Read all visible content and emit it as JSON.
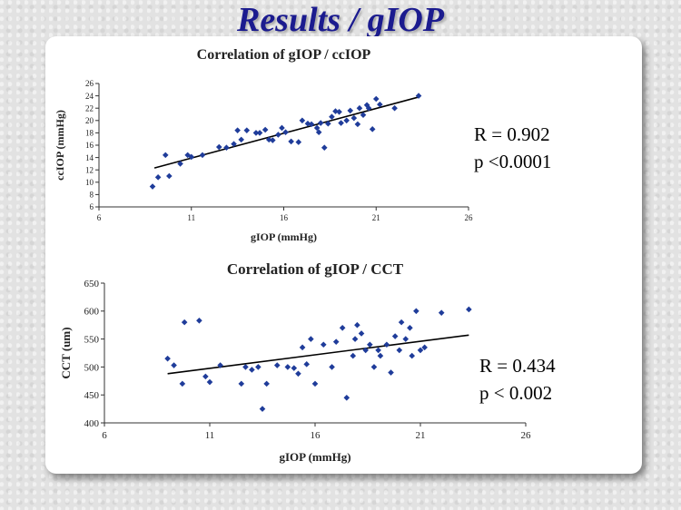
{
  "slide": {
    "title": "Results / gIOP"
  },
  "chart_data": [
    {
      "type": "scatter",
      "title": "Correlation of  gIOP  /  ccIOP",
      "xlabel": "gIOP (mmHg)",
      "ylabel": "ccIOP (mmHg)",
      "xlim": [
        6,
        26
      ],
      "ylim": [
        6,
        26
      ],
      "xticks": [
        "6",
        "11",
        "16",
        "21",
        "26"
      ],
      "yticks": [
        "6",
        "8",
        "10",
        "12",
        "14",
        "16",
        "18",
        "20",
        "22",
        "24",
        "26"
      ],
      "grid": false,
      "trendline": {
        "x": [
          9,
          23.3
        ],
        "y": [
          12.3,
          23.8
        ]
      },
      "points": {
        "x": [
          8.9,
          9.2,
          9.6,
          9.8,
          10.4,
          10.8,
          11.0,
          11.6,
          12.5,
          12.9,
          13.3,
          13.5,
          13.7,
          14.0,
          14.5,
          14.7,
          15.0,
          15.2,
          15.4,
          15.7,
          15.9,
          16.1,
          16.4,
          16.8,
          17.0,
          17.3,
          17.5,
          17.8,
          17.9,
          18.0,
          18.2,
          18.4,
          18.6,
          18.8,
          19.0,
          19.1,
          19.4,
          19.6,
          19.8,
          20.0,
          20.1,
          20.3,
          20.5,
          20.6,
          20.8,
          21.0,
          21.2,
          22.0,
          23.3
        ],
        "y": [
          9.3,
          10.8,
          14.4,
          11.0,
          13.0,
          14.4,
          14.1,
          14.4,
          15.7,
          15.6,
          16.2,
          18.4,
          16.9,
          18.4,
          18.0,
          18.0,
          18.5,
          16.9,
          16.8,
          17.7,
          18.8,
          18.1,
          16.6,
          16.5,
          20.0,
          19.5,
          19.4,
          18.8,
          18.1,
          19.6,
          15.6,
          19.5,
          20.6,
          21.5,
          21.4,
          19.6,
          20.0,
          21.6,
          20.4,
          19.4,
          22.0,
          20.9,
          22.5,
          22.0,
          18.6,
          23.5,
          22.6,
          22.0,
          24.0
        ]
      }
    },
    {
      "type": "scatter",
      "title": "Correlation of  gIOP  /  CCT",
      "xlabel": "gIOP (mmHg)",
      "ylabel": "CCT (um)",
      "xlim": [
        6,
        26
      ],
      "ylim": [
        400,
        650
      ],
      "xticks": [
        "6",
        "11",
        "16",
        "21",
        "26"
      ],
      "yticks": [
        "400",
        "450",
        "500",
        "550",
        "600",
        "650"
      ],
      "grid": false,
      "trendline": {
        "x": [
          9,
          23.3
        ],
        "y": [
          488,
          557
        ]
      },
      "points": {
        "x": [
          9.0,
          9.3,
          9.7,
          9.8,
          10.5,
          10.8,
          11.0,
          11.5,
          12.5,
          12.7,
          13.0,
          13.3,
          13.5,
          13.7,
          14.2,
          14.7,
          15.0,
          15.2,
          15.4,
          15.6,
          15.8,
          16.0,
          16.4,
          16.8,
          17.0,
          17.3,
          17.5,
          17.8,
          17.9,
          18.0,
          18.2,
          18.4,
          18.6,
          18.8,
          19.0,
          19.1,
          19.4,
          19.6,
          19.8,
          20.0,
          20.1,
          20.3,
          20.5,
          20.6,
          20.8,
          21.0,
          21.2,
          22.0,
          23.3
        ],
        "y": [
          515,
          503,
          470,
          580,
          583,
          483,
          473,
          503,
          470,
          500,
          495,
          500,
          425,
          470,
          503,
          500,
          498,
          488,
          535,
          505,
          550,
          470,
          540,
          500,
          545,
          570,
          445,
          520,
          550,
          575,
          560,
          530,
          540,
          500,
          530,
          520,
          540,
          490,
          555,
          530,
          580,
          550,
          570,
          520,
          600,
          530,
          535,
          597,
          603
        ]
      }
    }
  ],
  "stats": [
    {
      "r": "R = 0.902",
      "p": "p <0.0001"
    },
    {
      "r": "R = 0.434",
      "p": "p < 0.002"
    }
  ],
  "colors": {
    "marker": "#1f3c9a",
    "title": "#1b1b8f",
    "trend": "#000000"
  }
}
